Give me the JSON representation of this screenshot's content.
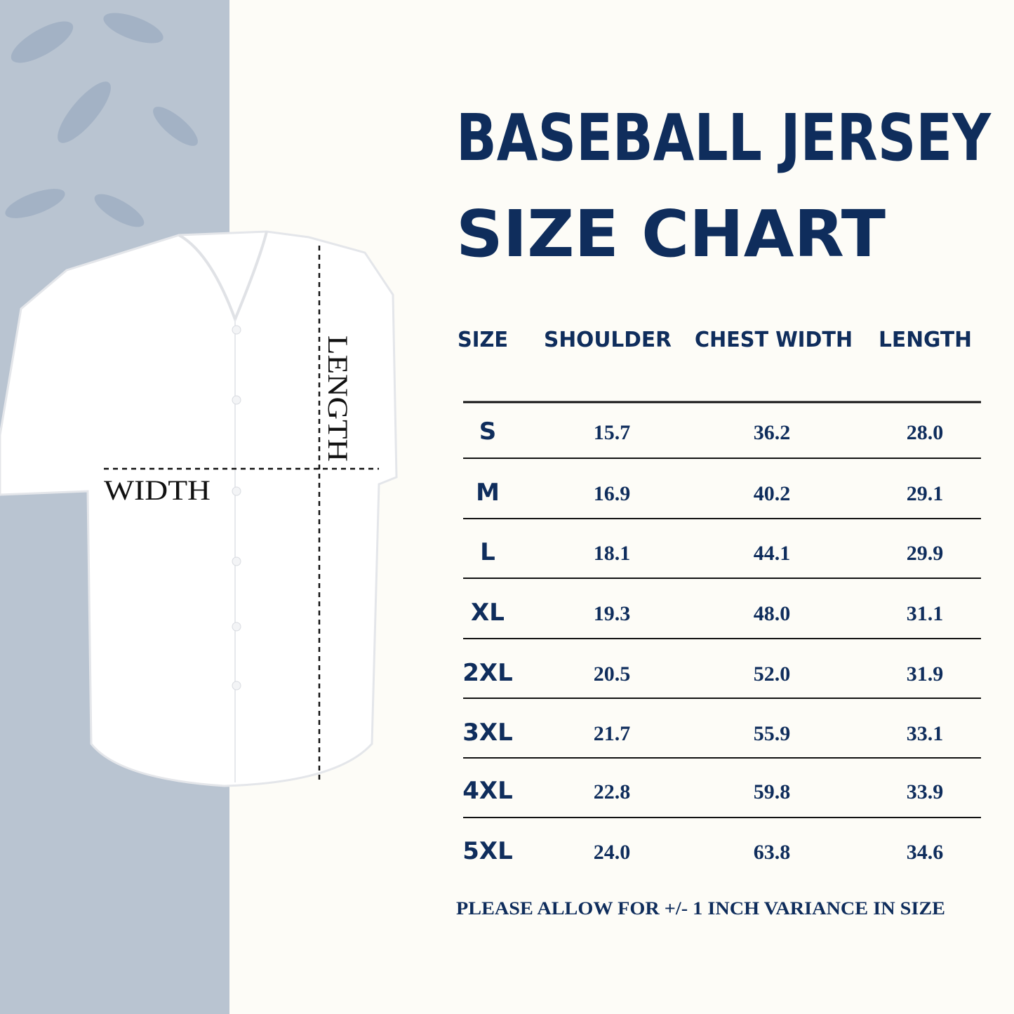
{
  "header": {
    "title_line1": "BASEBALL JERSEY",
    "title_line2": "SIZE CHART"
  },
  "diagram": {
    "width_label": "WIDTH",
    "length_label": "LENGTH"
  },
  "table": {
    "columns": [
      "SIZE",
      "SHOULDER",
      "CHEST WIDTH",
      "LENGTH"
    ],
    "rows": [
      [
        "S",
        "15.7",
        "36.2",
        "28.0"
      ],
      [
        "M",
        "16.9",
        "40.2",
        "29.1"
      ],
      [
        "L",
        "18.1",
        "44.1",
        "29.9"
      ],
      [
        "XL",
        "19.3",
        "48.0",
        "31.1"
      ],
      [
        "2XL",
        "20.5",
        "52.0",
        "31.9"
      ],
      [
        "3XL",
        "21.7",
        "55.9",
        "33.1"
      ],
      [
        "4XL",
        "22.8",
        "59.8",
        "33.9"
      ],
      [
        "5XL",
        "24.0",
        "63.8",
        "34.6"
      ]
    ]
  },
  "footer": {
    "note": "PLEASE ALLOW FOR +/- 1 INCH VARIANCE IN SIZE"
  }
}
